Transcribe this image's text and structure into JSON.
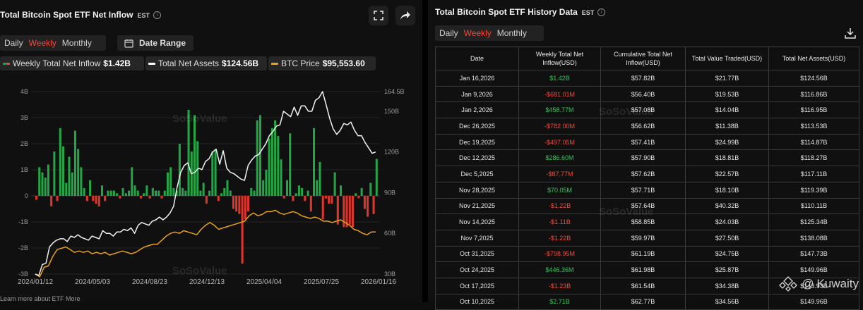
{
  "left": {
    "title": "Total Bitcoin Spot ETF Net Inflow",
    "tz": "EST",
    "tabs": [
      "Daily",
      "Weekly",
      "Monthly"
    ],
    "active_tab": "Weekly",
    "date_range": "Date Range",
    "legend": [
      {
        "label": "Weekly Total Net Inflow",
        "value": "$1.42B",
        "color": "#22a745"
      },
      {
        "label": "Total Net Assets",
        "value": "$124.56B",
        "color": "#ffffff"
      },
      {
        "label": "BTC Price",
        "value": "$95,553.60",
        "color": "#e8a21a"
      }
    ],
    "footnote": "Learn more about ETF   More"
  },
  "chart_data": {
    "type": "bar",
    "x_tick_labels": [
      "2024/01/12",
      "2024/05/03",
      "2024/08/23",
      "2024/12/13",
      "2025/04/04",
      "2025/07/25",
      "2026/01/16"
    ],
    "y_left_ticks": [
      "4B",
      "3B",
      "2B",
      "1B",
      "0",
      "-1B",
      "-2B",
      "-3B"
    ],
    "y_left_range": [
      -3,
      4
    ],
    "y_right_ticks": [
      "164.5B",
      "150B",
      "120B",
      "90B",
      "60B",
      "30B"
    ],
    "y_right_range": [
      30,
      164.5
    ],
    "series": [
      {
        "name": "Weekly Total Net Inflow",
        "unit": "B",
        "values": [
          -0.15,
          1.1,
          0.9,
          0.7,
          1.2,
          -0.4,
          1.7,
          -0.2,
          2.6,
          1.9,
          0.5,
          1.5,
          0.9,
          2.5,
          1.8,
          1.1,
          0.3,
          -0.2,
          0.6,
          -0.2,
          -0.3,
          -0.4,
          0.4,
          -0.2,
          0.2,
          0.2,
          0.2,
          0.1,
          -0.1,
          0.3,
          0.1,
          0.2,
          1.1,
          0.4,
          0.2,
          -0.1,
          0.1,
          0.4,
          -0.1,
          0.3,
          0.2,
          0.2,
          -0.1,
          0.2,
          0.9,
          1.1,
          0.3,
          0.2,
          2.0,
          0.3,
          0.2,
          3.3,
          1.7,
          3.1,
          2.1,
          0.2,
          0.5,
          -0.3,
          0.2,
          1.7,
          1.8,
          -0.2,
          0.1,
          0.3,
          0.6,
          0.2,
          -0.5,
          -0.6,
          -0.7,
          -2.6,
          -0.9,
          -0.6,
          0.3,
          0.2,
          2.9,
          3.1,
          0.6,
          1.0,
          2.2,
          2.6,
          2.9,
          2.3,
          1.4,
          -0.1,
          0.6,
          2.4,
          -0.2,
          0.1,
          0.4,
          0.3,
          -0.2,
          0.2,
          -0.6,
          2.6,
          0.6,
          1.3,
          -0.9,
          -0.1,
          -0.3,
          -0.3,
          0.9,
          -1.1,
          0.4,
          -1.2,
          -1.2,
          -1.1,
          -1.2,
          0.1,
          -0.09,
          0.3,
          -0.5,
          -0.8,
          0.5,
          -0.7,
          1.42
        ]
      },
      {
        "name": "Total Net Assets",
        "unit": "B",
        "values": [
          30,
          29,
          37,
          38,
          50,
          53,
          55,
          56,
          56,
          54,
          58,
          57,
          59,
          57,
          56,
          55,
          58,
          57,
          56,
          62,
          60,
          60,
          58,
          61,
          61,
          63,
          62,
          64,
          60,
          66,
          68,
          67,
          66,
          69,
          70,
          72,
          70,
          72,
          75,
          80,
          94,
          105,
          110,
          112,
          104,
          105,
          108,
          107,
          113,
          115,
          120,
          122,
          111,
          121,
          108,
          105,
          104,
          102,
          100,
          99,
          110,
          114,
          117,
          118,
          122,
          126,
          132,
          135,
          139,
          140,
          150,
          148,
          146,
          153,
          147,
          154,
          154,
          150,
          150,
          158,
          160,
          164.5,
          155,
          145,
          137,
          133,
          136,
          141,
          140,
          142,
          136,
          132,
          132,
          127,
          123,
          119,
          120
        ]
      },
      {
        "name": "BTC Price",
        "unit": "K",
        "values": [
          30,
          28,
          35,
          36,
          43,
          48,
          49,
          50,
          48,
          46,
          47,
          46,
          47,
          45,
          46,
          45,
          46,
          44,
          45,
          46,
          47,
          46,
          45,
          46,
          48,
          50,
          51,
          52,
          52,
          55,
          58,
          60,
          61,
          60,
          62,
          61,
          60,
          59,
          63,
          66,
          68,
          66,
          63,
          64,
          65,
          66,
          67,
          68,
          69,
          73,
          75,
          73,
          74,
          76,
          76,
          77,
          75,
          74,
          75,
          76,
          75,
          73,
          72,
          71,
          72,
          71,
          69,
          69,
          68,
          69,
          70,
          68,
          66,
          63,
          62,
          60,
          59,
          61,
          61
        ]
      }
    ]
  },
  "right": {
    "title": "Total Bitcoin Spot ETF History Data",
    "tz": "EST",
    "tabs": [
      "Daily",
      "Weekly",
      "Monthly"
    ],
    "active_tab": "Weekly",
    "columns": [
      "Date",
      "Weekly Total Net Inflow(USD)",
      "Cumulative Total Net Inflow(USD)",
      "Total Value Traded(USD)",
      "Total Net Assets(USD)"
    ],
    "rows": [
      {
        "date": "Jan 16,2026",
        "weekly": "$1.42B",
        "sign": "pos",
        "cum": "$57.82B",
        "traded": "$21.77B",
        "assets": "$124.56B"
      },
      {
        "date": "Jan 9,2026",
        "weekly": "-$681.01M",
        "sign": "neg",
        "cum": "$56.40B",
        "traded": "$19.53B",
        "assets": "$116.86B"
      },
      {
        "date": "Jan 2,2026",
        "weekly": "$458.77M",
        "sign": "pos",
        "cum": "$57.08B",
        "traded": "$14.04B",
        "assets": "$116.95B"
      },
      {
        "date": "Dec 26,2025",
        "weekly": "-$782.00M",
        "sign": "neg",
        "cum": "$56.62B",
        "traded": "$11.38B",
        "assets": "$113.53B"
      },
      {
        "date": "Dec 19,2025",
        "weekly": "-$497.05M",
        "sign": "neg",
        "cum": "$57.41B",
        "traded": "$24.99B",
        "assets": "$114.87B"
      },
      {
        "date": "Dec 12,2025",
        "weekly": "$286.60M",
        "sign": "pos",
        "cum": "$57.90B",
        "traded": "$18.81B",
        "assets": "$118.27B"
      },
      {
        "date": "Dec 5,2025",
        "weekly": "-$87.77M",
        "sign": "neg",
        "cum": "$57.62B",
        "traded": "$22.57B",
        "assets": "$117.11B"
      },
      {
        "date": "Nov 28,2025",
        "weekly": "$70.05M",
        "sign": "pos",
        "cum": "$57.71B",
        "traded": "$18.10B",
        "assets": "$119.39B"
      },
      {
        "date": "Nov 21,2025",
        "weekly": "-$1.22B",
        "sign": "neg",
        "cum": "$57.64B",
        "traded": "$40.32B",
        "assets": "$110.11B"
      },
      {
        "date": "Nov 14,2025",
        "weekly": "-$1.11B",
        "sign": "neg",
        "cum": "$58.85B",
        "traded": "$24.03B",
        "assets": "$125.34B"
      },
      {
        "date": "Nov 7,2025",
        "weekly": "-$1.22B",
        "sign": "neg",
        "cum": "$59.97B",
        "traded": "$27.50B",
        "assets": "$138.08B"
      },
      {
        "date": "Oct 31,2025",
        "weekly": "-$798.95M",
        "sign": "neg",
        "cum": "$61.19B",
        "traded": "$24.75B",
        "assets": "$147.73B"
      },
      {
        "date": "Oct 24,2025",
        "weekly": "$446.36M",
        "sign": "pos",
        "cum": "$61.98B",
        "traded": "$25.87B",
        "assets": "$149.96B"
      },
      {
        "date": "Oct 17,2025",
        "weekly": "-$1.23B",
        "sign": "neg",
        "cum": "$61.54B",
        "traded": "$34.38B",
        "assets": "$143.93B"
      },
      {
        "date": "Oct 10,2025",
        "weekly": "$2.71B",
        "sign": "pos",
        "cum": "$62.77B",
        "traded": "$34.56B",
        "assets": "$149.96B"
      }
    ]
  },
  "watermark": "SoSoValue",
  "brand": "Kuwaity",
  "icons": [
    "fullscreen-icon",
    "share-icon",
    "calendar-icon",
    "download-icon",
    "kuwaity-logo-icon"
  ]
}
